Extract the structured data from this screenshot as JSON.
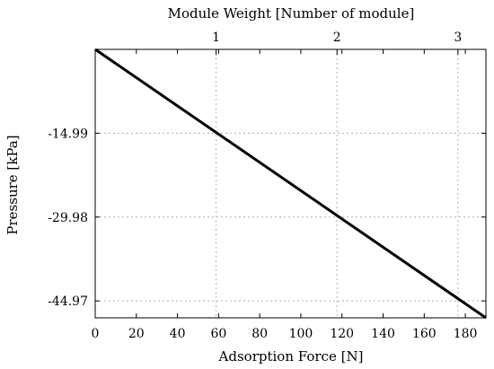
{
  "chart_data": {
    "type": "line",
    "xlabel": "Adsorption Force [N]",
    "ylabel": "Pressure [kPa]",
    "x2label": "Module Weight [Number of module]",
    "xlim": [
      0,
      190
    ],
    "ylim": [
      -48.0,
      0
    ],
    "x_ticks": [
      0,
      20,
      40,
      60,
      80,
      100,
      120,
      140,
      160,
      180
    ],
    "x_tick_labels": [
      "0",
      "20",
      "40",
      "60",
      "80",
      "100",
      "120",
      "140",
      "160",
      "180"
    ],
    "y_ticks": [
      -14.99,
      -29.98,
      -44.97
    ],
    "y_tick_labels": [
      "-14.99",
      "-29.98",
      "-44.97"
    ],
    "x2_ticks": [
      1,
      2,
      3
    ],
    "x2_tick_labels": [
      "1",
      "2",
      "3"
    ],
    "x2_ticks_at_x": [
      58.8,
      117.6,
      176.4
    ],
    "grid": true,
    "series": [
      {
        "x": [
          0,
          190
        ],
        "y": [
          0,
          -48.0
        ]
      }
    ]
  }
}
